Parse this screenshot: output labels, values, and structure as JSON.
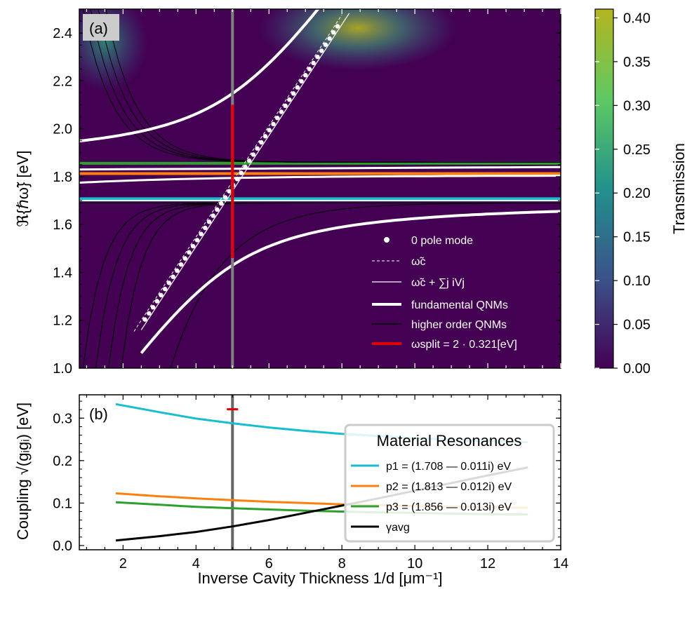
{
  "chart_data": [
    {
      "panel": "a",
      "type": "heatmap",
      "panel_label": "(a)",
      "title": "",
      "xlabel": "",
      "ylabel": "ℜ{ℏω̃} [eV]",
      "xlim": [
        0.8,
        14.0
      ],
      "ylim": [
        1.0,
        2.5
      ],
      "yticks": [
        "1.0",
        "1.2",
        "1.4",
        "1.6",
        "1.8",
        "2.0",
        "2.2",
        "2.4"
      ],
      "colorbar": {
        "label": "Transmission",
        "range": [
          0.0,
          0.41
        ],
        "ticks": [
          "0.00",
          "0.05",
          "0.10",
          "0.15",
          "0.20",
          "0.25",
          "0.30",
          "0.35",
          "0.40"
        ],
        "colormap": [
          "#440154",
          "#3b528b",
          "#21918c",
          "#5ec962",
          "#b5b520"
        ]
      },
      "vertical_marker_x": 5.0,
      "split": {
        "x": 5.0,
        "y_low": 1.46,
        "y_high": 2.1,
        "value_eV": 0.321
      },
      "material_lines": [
        {
          "name": "p1",
          "y": 1.708,
          "color": "#17becf"
        },
        {
          "name": "p2",
          "y": 1.813,
          "color": "#ff7f0e"
        },
        {
          "name": "p3",
          "y": 1.856,
          "color": "#2ca02c"
        }
      ],
      "legend": [
        {
          "label": "0 pole mode",
          "style": "dots"
        },
        {
          "label": "ω̃c",
          "style": "dashed"
        },
        {
          "label": "ω̃c + ∑j iVj",
          "style": "thin"
        },
        {
          "label": "fundamental QNMs",
          "style": "thick"
        },
        {
          "label": "higher order QNMs",
          "style": "black"
        },
        {
          "label": "ωsplit = 2 · 0.321[eV]",
          "style": "red"
        }
      ]
    },
    {
      "panel": "b",
      "type": "line",
      "panel_label": "(b)",
      "xlabel": "Inverse Cavity Thickness 1/d [μm⁻¹]",
      "ylabel": "Coupling √(gᵢgᵢ) [eV]",
      "xlim": [
        0.8,
        14.0
      ],
      "ylim": [
        -0.01,
        0.355
      ],
      "xticks": [
        "2",
        "4",
        "6",
        "8",
        "10",
        "12",
        "14"
      ],
      "yticks": [
        "0.0",
        "0.1",
        "0.2",
        "0.3"
      ],
      "vertical_marker_x": 5.0,
      "split_marker": {
        "x": 5.0,
        "y": 0.321
      },
      "legend_title": "Material Resonances",
      "series": [
        {
          "name": "p1",
          "label": "p1 = (1.708 — 0.011i) eV",
          "color": "#17becf",
          "x": [
            1.8,
            3,
            4,
            5,
            6,
            7,
            8,
            9,
            10,
            11,
            12,
            13.1
          ],
          "values": [
            0.333,
            0.314,
            0.299,
            0.288,
            0.278,
            0.27,
            0.263,
            0.258,
            0.253,
            0.249,
            0.246,
            0.243
          ]
        },
        {
          "name": "p2",
          "label": "p2 = (1.813 — 0.012i) eV",
          "color": "#ff7f0e",
          "x": [
            1.8,
            3,
            4,
            5,
            6,
            7,
            8,
            9,
            10,
            11,
            12,
            13.1
          ],
          "values": [
            0.123,
            0.116,
            0.111,
            0.107,
            0.103,
            0.1,
            0.097,
            0.095,
            0.093,
            0.091,
            0.09,
            0.089
          ]
        },
        {
          "name": "p3",
          "label": "p3 = (1.856 — 0.013i) eV",
          "color": "#2ca02c",
          "x": [
            1.8,
            3,
            4,
            5,
            6,
            7,
            8,
            9,
            10,
            11,
            12,
            13.1
          ],
          "values": [
            0.102,
            0.096,
            0.091,
            0.088,
            0.085,
            0.082,
            0.08,
            0.078,
            0.077,
            0.075,
            0.074,
            0.073
          ]
        },
        {
          "name": "gamma",
          "label": "γavg",
          "color": "#000000",
          "x": [
            1.8,
            3,
            4,
            5,
            6,
            7,
            8,
            9,
            10,
            11,
            12,
            13.1
          ],
          "values": [
            0.012,
            0.022,
            0.032,
            0.045,
            0.06,
            0.077,
            0.094,
            0.111,
            0.129,
            0.147,
            0.165,
            0.184
          ]
        }
      ]
    }
  ]
}
